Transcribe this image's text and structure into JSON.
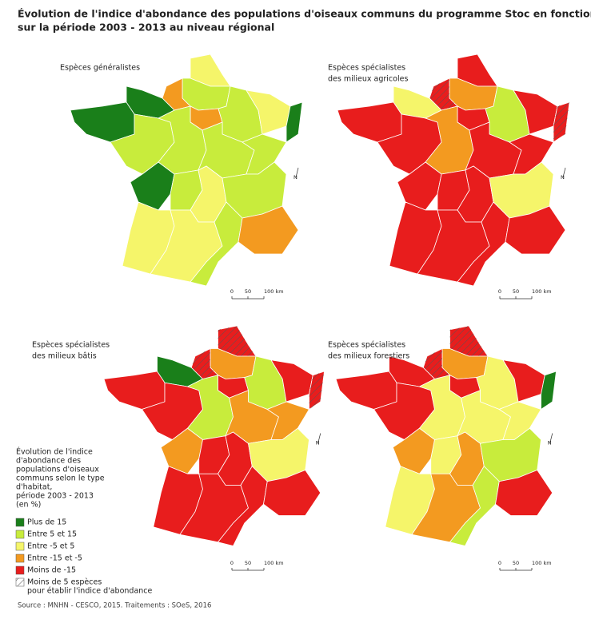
{
  "header": {
    "title_lines": [
      "Évolution de l'indice d'abondance des populations d'oiseaux communs du programme Stoc en fonction du type d'habitat",
      "sur la période  2003 - 2013 au niveau régional"
    ]
  },
  "maps": [
    {
      "title_lines": [
        "Espèces généralistes"
      ]
    },
    {
      "title_lines": [
        "Espèces spécialistes",
        "des milieux agricoles"
      ]
    },
    {
      "title_lines": [
        "Espèces spécialistes",
        "des milieux bâtis"
      ]
    },
    {
      "title_lines": [
        "Espèces spécialistes",
        "des milieux forestiers"
      ]
    }
  ],
  "scale_labels": [
    "0",
    "50",
    "100 km"
  ],
  "north": "N",
  "legend": {
    "title_lines": [
      "Évolution de l'indice",
      "d'abondance des",
      "populations d'oiseaux",
      "communs selon le type",
      "d'habitat,",
      "période 2003 - 2013",
      "(en %)"
    ],
    "items": [
      {
        "label_lines": [
          "Plus de 15"
        ],
        "color": "#1a7f1a"
      },
      {
        "label_lines": [
          "Entre 5 et 15"
        ],
        "color": "#c8ec3c"
      },
      {
        "label_lines": [
          "Entre -5 et 5"
        ],
        "color": "#f5f56a"
      },
      {
        "label_lines": [
          "Entre -15 et -5"
        ],
        "color": "#f39a20"
      },
      {
        "label_lines": [
          "Moins de -15"
        ],
        "color": "#e81d1d"
      },
      {
        "label_lines": [
          "Moins de 5 espèces",
          "pour établir l'indice d'abondance"
        ],
        "color": "#ffffff"
      }
    ]
  },
  "source": "Source : MNHN - CESCO, 2015. Traitements : SOeS, 2016"
}
